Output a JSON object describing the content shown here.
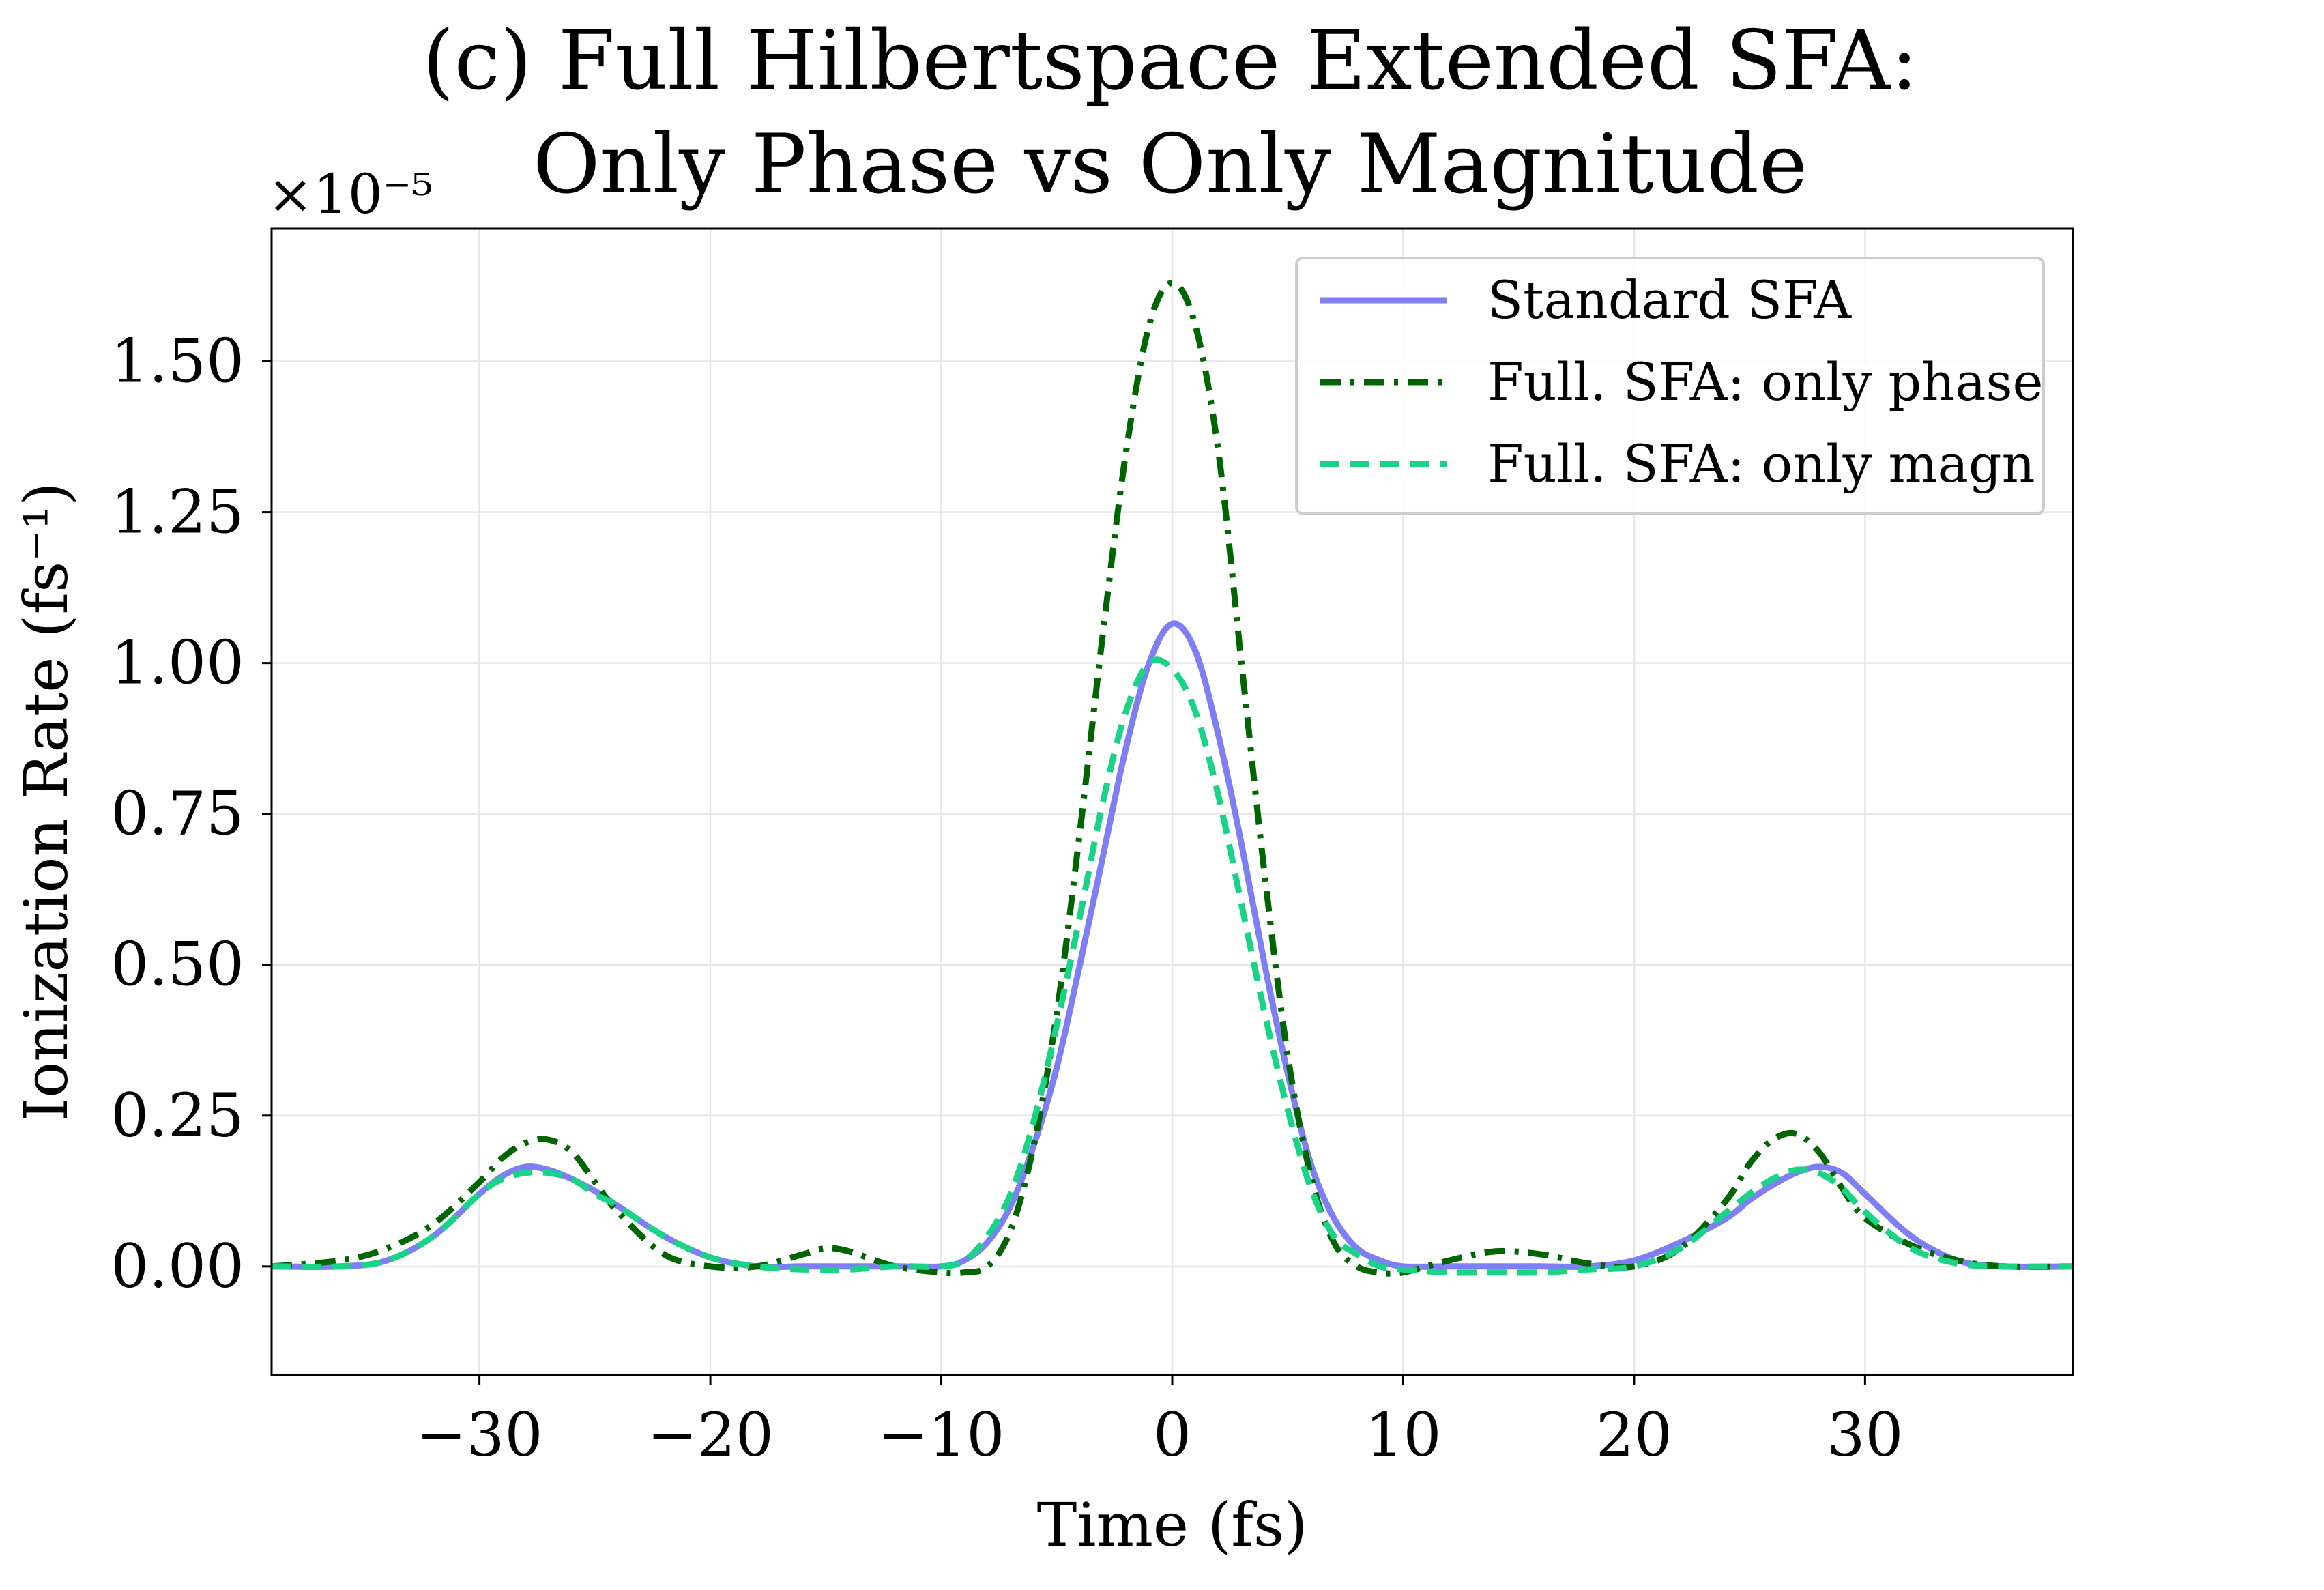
{
  "chart_data": {
    "type": "line",
    "title_line1": "(c) Full Hilbertspace Extended SFA:",
    "title_line2": "Only Phase vs Only Magnitude",
    "xlabel": "Time (fs)",
    "ylabel": "Ionization Rate (fs⁻¹)",
    "y_multiplier": "×10⁻⁵",
    "xlim": [
      -39,
      39
    ],
    "ylim": [
      -0.18,
      1.72
    ],
    "xticks": [
      -30,
      -20,
      -10,
      0,
      10,
      20,
      30
    ],
    "xtick_labels": [
      "−30",
      "−20",
      "−10",
      "0",
      "10",
      "20",
      "30"
    ],
    "yticks": [
      0,
      0.25,
      0.5,
      0.75,
      1.0,
      1.25,
      1.5
    ],
    "ytick_labels": [
      "0.00",
      "0.25",
      "0.50",
      "0.75",
      "1.00",
      "1.25",
      "1.50"
    ],
    "grid": true,
    "legend_position": "top-right",
    "series": [
      {
        "name": "Standard SFA",
        "color": "#7f7ff5",
        "style": "solid",
        "x": [
          -39,
          -36,
          -34,
          -32,
          -30,
          -29,
          -28,
          -27,
          -26,
          -25,
          -24,
          -22,
          -20,
          -18,
          -16,
          -14,
          -12,
          -10,
          -9,
          -8,
          -7,
          -6,
          -5,
          -4,
          -3,
          -2,
          -1,
          0,
          1,
          2,
          3,
          4,
          5,
          6,
          7,
          8,
          9,
          10,
          12,
          14,
          16,
          18,
          20,
          22,
          24,
          25,
          26,
          27,
          28,
          29,
          30,
          32,
          34,
          36,
          39
        ],
        "y": [
          0.0,
          0.0,
          0.01,
          0.05,
          0.12,
          0.15,
          0.165,
          0.16,
          0.145,
          0.125,
          0.1,
          0.05,
          0.015,
          0.0,
          0.0,
          0.0,
          0.0,
          0.0,
          0.01,
          0.04,
          0.1,
          0.2,
          0.33,
          0.5,
          0.68,
          0.86,
          1.0,
          1.065,
          1.02,
          0.88,
          0.7,
          0.5,
          0.32,
          0.17,
          0.08,
          0.03,
          0.01,
          0.0,
          0.0,
          0.0,
          0.0,
          0.0,
          0.01,
          0.04,
          0.08,
          0.11,
          0.135,
          0.155,
          0.165,
          0.155,
          0.12,
          0.05,
          0.01,
          0.0,
          0.0
        ]
      },
      {
        "name": "Full. SFA: only phase",
        "color": "#006400",
        "style": "dashdot",
        "x": [
          -39,
          -36,
          -34,
          -32,
          -30,
          -29,
          -28,
          -27,
          -26,
          -25,
          -24,
          -22,
          -20,
          -18,
          -16,
          -15,
          -14,
          -12,
          -10,
          -9,
          -8,
          -7,
          -6,
          -5,
          -4,
          -3,
          -2,
          -1,
          0,
          1,
          2,
          3,
          4,
          5,
          6,
          7,
          8,
          9,
          10,
          12,
          14,
          16,
          18,
          20,
          22,
          24,
          25,
          26,
          27,
          28,
          29,
          30,
          32,
          34,
          36,
          39
        ],
        "y": [
          0.0,
          0.01,
          0.03,
          0.07,
          0.14,
          0.18,
          0.205,
          0.21,
          0.19,
          0.14,
          0.09,
          0.02,
          0.0,
          0.0,
          0.02,
          0.03,
          0.025,
          0.0,
          -0.01,
          -0.01,
          0.0,
          0.06,
          0.2,
          0.42,
          0.72,
          1.05,
          1.35,
          1.56,
          1.63,
          1.56,
          1.35,
          1.0,
          0.65,
          0.35,
          0.15,
          0.04,
          0.0,
          -0.01,
          -0.01,
          0.01,
          0.025,
          0.02,
          0.005,
          0.0,
          0.03,
          0.11,
          0.17,
          0.21,
          0.22,
          0.19,
          0.13,
          0.08,
          0.035,
          0.01,
          0.0,
          0.0
        ]
      },
      {
        "name": "Full. SFA: only magn",
        "color": "#19d486",
        "style": "dashed",
        "x": [
          -39,
          -36,
          -34,
          -32,
          -30,
          -29,
          -28,
          -27,
          -26,
          -25,
          -24,
          -22,
          -20,
          -18,
          -16,
          -14,
          -12,
          -10,
          -9,
          -8,
          -7,
          -6,
          -5,
          -4,
          -3,
          -2,
          -1,
          0,
          1,
          2,
          3,
          4,
          5,
          6,
          7,
          8,
          9,
          10,
          12,
          14,
          16,
          18,
          20,
          22,
          24,
          25,
          26,
          27,
          28,
          29,
          30,
          32,
          34,
          36,
          39
        ],
        "y": [
          0.0,
          0.0,
          0.01,
          0.05,
          0.12,
          0.145,
          0.155,
          0.155,
          0.145,
          0.12,
          0.1,
          0.05,
          0.015,
          0.0,
          -0.005,
          -0.005,
          0.0,
          0.0,
          0.01,
          0.05,
          0.12,
          0.24,
          0.4,
          0.58,
          0.77,
          0.92,
          1.0,
          0.99,
          0.92,
          0.78,
          0.6,
          0.42,
          0.26,
          0.13,
          0.05,
          0.02,
          0.0,
          -0.005,
          -0.01,
          -0.01,
          -0.01,
          -0.005,
          0.0,
          0.03,
          0.09,
          0.12,
          0.145,
          0.16,
          0.155,
          0.13,
          0.09,
          0.03,
          0.005,
          0.0,
          0.0
        ]
      }
    ]
  }
}
